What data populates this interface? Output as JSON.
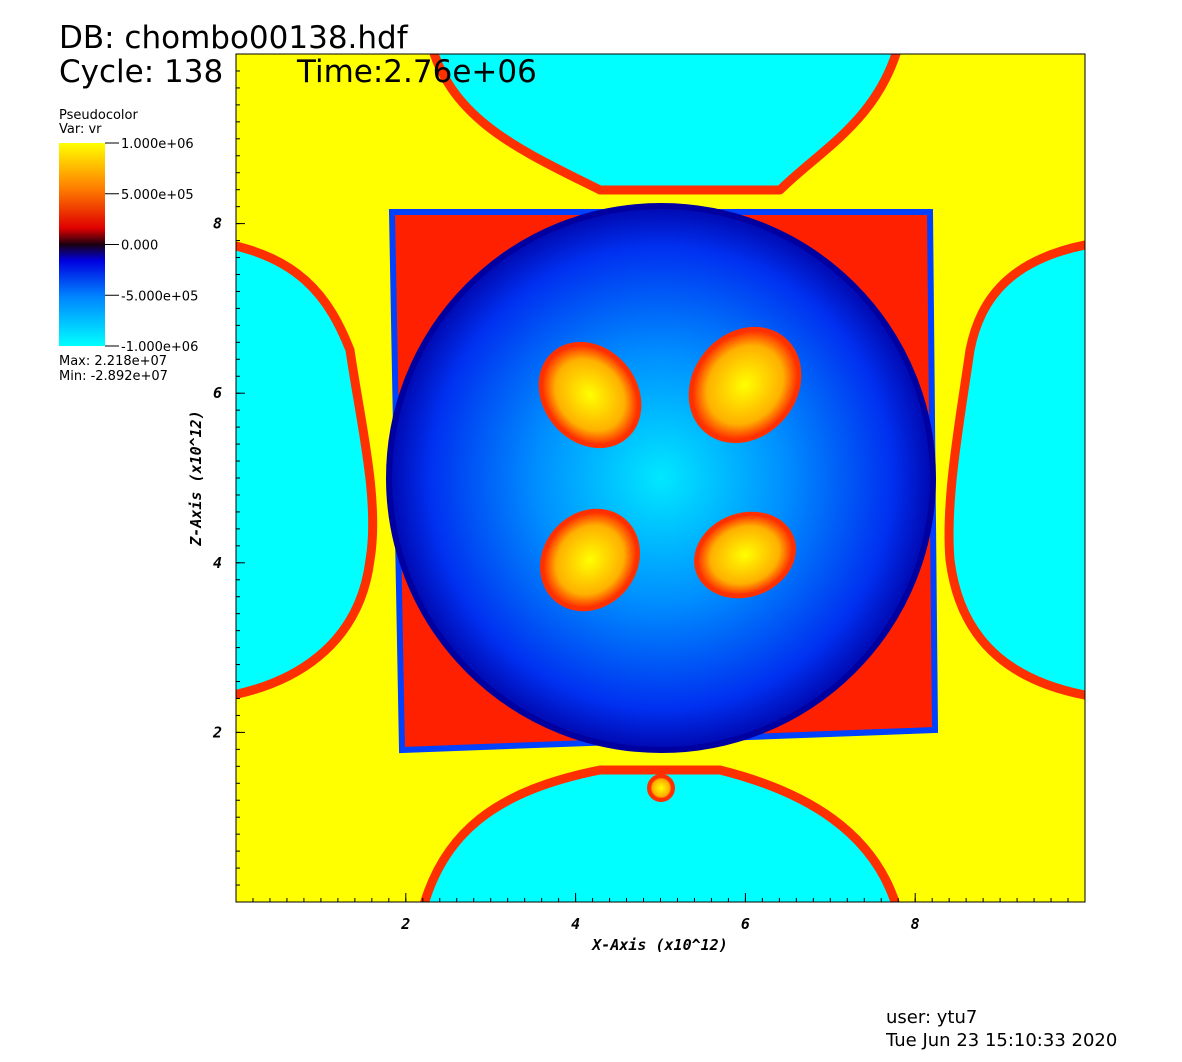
{
  "chart_data": {
    "type": "pseudocolor",
    "title": "DB: chombo00138.hdf",
    "cycle": "Cycle: 138",
    "time": "Time:2.76e+06",
    "legend": {
      "title": "Pseudocolor",
      "variable": "Var: vr",
      "range": [
        -1000000,
        1000000
      ],
      "ticks": [
        {
          "value": 1000000,
          "label": "1.000e+06"
        },
        {
          "value": 500000,
          "label": "5.000e+05"
        },
        {
          "value": 0,
          "label": "0.000"
        },
        {
          "value": -500000,
          "label": "-5.000e+05"
        },
        {
          "value": -1000000,
          "label": "-1.000e+06"
        }
      ],
      "max": "Max:  2.218e+07",
      "min": "Min: -2.892e+07"
    },
    "xlabel": "X-Axis  (x10^12)",
    "ylabel": "Z-Axis  (x10^12)",
    "xlim": [
      0,
      10
    ],
    "ylim": [
      0,
      10
    ],
    "xticks": [
      2,
      4,
      6,
      8
    ],
    "yticks": [
      2,
      4,
      6,
      8
    ],
    "user": "user: ytu7",
    "date": "Tue Jun 23 15:10:33 2020"
  }
}
